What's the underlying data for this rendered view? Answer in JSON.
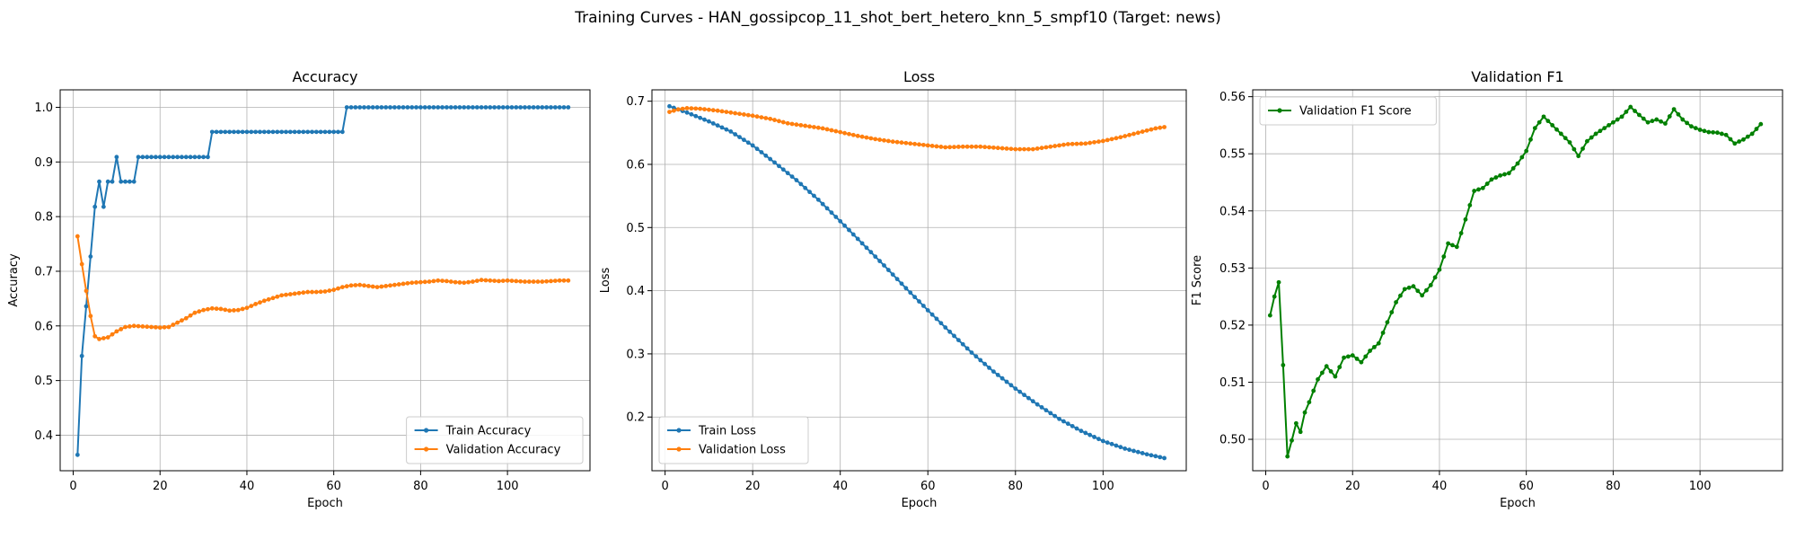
{
  "figure": {
    "suptitle": "Training Curves - HAN_gossipcop_11_shot_bert_hetero_knn_5_smpf10 (Target: news)"
  },
  "chart_data": [
    {
      "type": "line",
      "title": "Accuracy",
      "xlabel": "Epoch",
      "ylabel": "Accuracy",
      "xlim": [
        -3,
        119
      ],
      "ylim": [
        0.335,
        1.032
      ],
      "xticks": [
        0,
        20,
        40,
        60,
        80,
        100
      ],
      "yticks": [
        0.4,
        0.5,
        0.6,
        0.7,
        0.8,
        0.9,
        1.0
      ],
      "ytick_labels": [
        "0.4",
        "0.5",
        "0.6",
        "0.7",
        "0.8",
        "0.9",
        "1.0"
      ],
      "grid": true,
      "legend_position": "lower-right",
      "series": [
        {
          "name": "Train Accuracy",
          "color": "#1f77b4",
          "keypoints": [
            [
              1,
              0.364
            ],
            [
              2,
              0.545
            ],
            [
              3,
              0.636
            ],
            [
              4,
              0.727
            ],
            [
              5,
              0.818
            ],
            [
              6,
              0.864
            ],
            [
              7,
              0.818
            ],
            [
              8,
              0.864
            ],
            [
              9,
              0.864
            ],
            [
              10,
              0.909
            ],
            [
              11,
              0.864
            ],
            [
              14,
              0.864
            ],
            [
              15,
              0.909
            ],
            [
              31,
              0.909
            ],
            [
              32,
              0.955
            ],
            [
              62,
              0.955
            ],
            [
              63,
              1.0
            ],
            [
              114,
              1.0
            ]
          ]
        },
        {
          "name": "Validation Accuracy",
          "color": "#ff7f0e",
          "keypoints": [
            [
              1,
              0.764
            ],
            [
              2,
              0.713
            ],
            [
              3,
              0.664
            ],
            [
              4,
              0.618
            ],
            [
              5,
              0.581
            ],
            [
              6,
              0.576
            ],
            [
              8,
              0.579
            ],
            [
              10,
              0.59
            ],
            [
              12,
              0.598
            ],
            [
              14,
              0.6
            ],
            [
              16,
              0.599
            ],
            [
              18,
              0.598
            ],
            [
              20,
              0.597
            ],
            [
              22,
              0.598
            ],
            [
              24,
              0.606
            ],
            [
              26,
              0.614
            ],
            [
              28,
              0.624
            ],
            [
              30,
              0.629
            ],
            [
              32,
              0.632
            ],
            [
              34,
              0.631
            ],
            [
              36,
              0.628
            ],
            [
              38,
              0.629
            ],
            [
              40,
              0.633
            ],
            [
              42,
              0.64
            ],
            [
              44,
              0.646
            ],
            [
              46,
              0.651
            ],
            [
              48,
              0.656
            ],
            [
              50,
              0.658
            ],
            [
              52,
              0.66
            ],
            [
              54,
              0.662
            ],
            [
              56,
              0.662
            ],
            [
              58,
              0.663
            ],
            [
              60,
              0.666
            ],
            [
              62,
              0.671
            ],
            [
              64,
              0.674
            ],
            [
              66,
              0.675
            ],
            [
              68,
              0.673
            ],
            [
              70,
              0.671
            ],
            [
              72,
              0.673
            ],
            [
              74,
              0.675
            ],
            [
              76,
              0.677
            ],
            [
              78,
              0.679
            ],
            [
              80,
              0.68
            ],
            [
              82,
              0.681
            ],
            [
              84,
              0.683
            ],
            [
              86,
              0.682
            ],
            [
              88,
              0.68
            ],
            [
              90,
              0.679
            ],
            [
              92,
              0.681
            ],
            [
              94,
              0.684
            ],
            [
              96,
              0.683
            ],
            [
              98,
              0.682
            ],
            [
              100,
              0.683
            ],
            [
              102,
              0.682
            ],
            [
              104,
              0.681
            ],
            [
              106,
              0.681
            ],
            [
              108,
              0.681
            ],
            [
              110,
              0.682
            ],
            [
              112,
              0.683
            ],
            [
              114,
              0.683
            ]
          ]
        }
      ]
    },
    {
      "type": "line",
      "title": "Loss",
      "xlabel": "Epoch",
      "ylabel": "Loss",
      "xlim": [
        -3,
        119
      ],
      "ylim": [
        0.115,
        0.718
      ],
      "xticks": [
        0,
        20,
        40,
        60,
        80,
        100
      ],
      "yticks": [
        0.2,
        0.3,
        0.4,
        0.5,
        0.6,
        0.7
      ],
      "ytick_labels": [
        "0.2",
        "0.3",
        "0.4",
        "0.5",
        "0.6",
        "0.7"
      ],
      "grid": true,
      "legend_position": "lower-left",
      "series": [
        {
          "name": "Train Loss",
          "color": "#1f77b4",
          "keypoints": [
            [
              1,
              0.692
            ],
            [
              5,
              0.682
            ],
            [
              10,
              0.668
            ],
            [
              15,
              0.652
            ],
            [
              20,
              0.63
            ],
            [
              25,
              0.603
            ],
            [
              30,
              0.575
            ],
            [
              35,
              0.544
            ],
            [
              40,
              0.51
            ],
            [
              45,
              0.475
            ],
            [
              50,
              0.44
            ],
            [
              55,
              0.404
            ],
            [
              60,
              0.369
            ],
            [
              65,
              0.335
            ],
            [
              70,
              0.302
            ],
            [
              75,
              0.272
            ],
            [
              80,
              0.245
            ],
            [
              85,
              0.22
            ],
            [
              90,
              0.197
            ],
            [
              95,
              0.178
            ],
            [
              100,
              0.162
            ],
            [
              105,
              0.15
            ],
            [
              110,
              0.141
            ],
            [
              114,
              0.135
            ]
          ]
        },
        {
          "name": "Validation Loss",
          "color": "#ff7f0e",
          "keypoints": [
            [
              1,
              0.683
            ],
            [
              3,
              0.687
            ],
            [
              5,
              0.689
            ],
            [
              8,
              0.688
            ],
            [
              12,
              0.685
            ],
            [
              16,
              0.681
            ],
            [
              20,
              0.677
            ],
            [
              24,
              0.672
            ],
            [
              28,
              0.665
            ],
            [
              32,
              0.661
            ],
            [
              36,
              0.657
            ],
            [
              40,
              0.651
            ],
            [
              44,
              0.645
            ],
            [
              48,
              0.64
            ],
            [
              52,
              0.636
            ],
            [
              56,
              0.633
            ],
            [
              60,
              0.63
            ],
            [
              64,
              0.627
            ],
            [
              68,
              0.628
            ],
            [
              72,
              0.628
            ],
            [
              76,
              0.626
            ],
            [
              80,
              0.624
            ],
            [
              84,
              0.624
            ],
            [
              88,
              0.628
            ],
            [
              92,
              0.632
            ],
            [
              96,
              0.633
            ],
            [
              100,
              0.637
            ],
            [
              104,
              0.643
            ],
            [
              108,
              0.65
            ],
            [
              112,
              0.657
            ],
            [
              114,
              0.659
            ]
          ]
        }
      ]
    },
    {
      "type": "line",
      "title": "Validation F1",
      "xlabel": "Epoch",
      "ylabel": "F1 Score",
      "xlim": [
        -3,
        119
      ],
      "ylim": [
        0.4945,
        0.5612
      ],
      "xticks": [
        0,
        20,
        40,
        60,
        80,
        100
      ],
      "yticks": [
        0.5,
        0.51,
        0.52,
        0.53,
        0.54,
        0.55,
        0.56
      ],
      "ytick_labels": [
        "0.50",
        "0.51",
        "0.52",
        "0.53",
        "0.54",
        "0.55",
        "0.56"
      ],
      "grid": true,
      "legend_position": "upper-left",
      "series": [
        {
          "name": "Validation F1 Score",
          "color": "#008000",
          "keypoints": [
            [
              1,
              0.5217
            ],
            [
              2,
              0.525
            ],
            [
              3,
              0.5275
            ],
            [
              4,
              0.513
            ],
            [
              5,
              0.497
            ],
            [
              6,
              0.4998
            ],
            [
              7,
              0.5028
            ],
            [
              8,
              0.5013
            ],
            [
              9,
              0.5047
            ],
            [
              10,
              0.5065
            ],
            [
              12,
              0.5105
            ],
            [
              14,
              0.5128
            ],
            [
              16,
              0.511
            ],
            [
              18,
              0.5143
            ],
            [
              20,
              0.5147
            ],
            [
              22,
              0.5135
            ],
            [
              24,
              0.5155
            ],
            [
              26,
              0.5168
            ],
            [
              28,
              0.5205
            ],
            [
              30,
              0.524
            ],
            [
              32,
              0.5263
            ],
            [
              34,
              0.5268
            ],
            [
              36,
              0.5252
            ],
            [
              38,
              0.527
            ],
            [
              40,
              0.5297
            ],
            [
              42,
              0.5343
            ],
            [
              44,
              0.5337
            ],
            [
              46,
              0.5385
            ],
            [
              48,
              0.5435
            ],
            [
              50,
              0.544
            ],
            [
              52,
              0.5455
            ],
            [
              54,
              0.5462
            ],
            [
              56,
              0.5466
            ],
            [
              58,
              0.5483
            ],
            [
              60,
              0.5505
            ],
            [
              62,
              0.5545
            ],
            [
              64,
              0.5565
            ],
            [
              66,
              0.555
            ],
            [
              68,
              0.5535
            ],
            [
              70,
              0.552
            ],
            [
              72,
              0.5496
            ],
            [
              74,
              0.5522
            ],
            [
              76,
              0.5535
            ],
            [
              78,
              0.5545
            ],
            [
              80,
              0.5555
            ],
            [
              82,
              0.5565
            ],
            [
              84,
              0.5582
            ],
            [
              86,
              0.5568
            ],
            [
              88,
              0.5555
            ],
            [
              90,
              0.556
            ],
            [
              92,
              0.5553
            ],
            [
              94,
              0.5578
            ],
            [
              96,
              0.556
            ],
            [
              98,
              0.5548
            ],
            [
              100,
              0.5542
            ],
            [
              102,
              0.5538
            ],
            [
              104,
              0.5537
            ],
            [
              106,
              0.5533
            ],
            [
              108,
              0.5518
            ],
            [
              110,
              0.5525
            ],
            [
              112,
              0.5535
            ],
            [
              114,
              0.5552
            ]
          ]
        }
      ]
    }
  ]
}
